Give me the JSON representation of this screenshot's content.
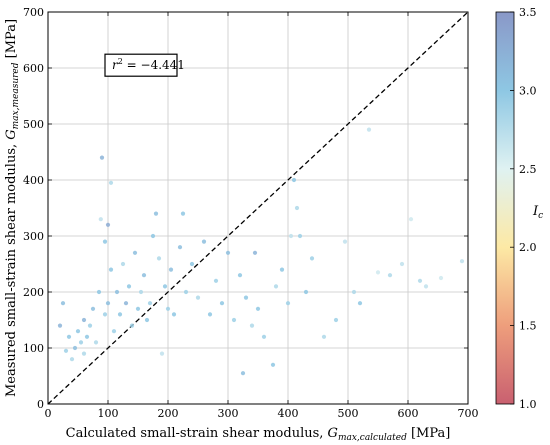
{
  "chart_data": {
    "type": "scatter",
    "xlabel": "Calculated small-strain shear modulus, G_max,calculated [MPa]",
    "xlabel_main": "Calculated small-strain shear modulus, ",
    "xlabel_sym": "G",
    "xlabel_sub": "max,calculated",
    "xlabel_unit": " [MPa]",
    "ylabel": "Measured small-strain shear modulus, G_max,measured [MPa]",
    "ylabel_main": "Measured small-strain shear modulus, ",
    "ylabel_sym": "G",
    "ylabel_sub": "max,measured",
    "ylabel_unit": " [MPa]",
    "xlim": [
      0,
      700
    ],
    "ylim": [
      0,
      700
    ],
    "x_ticks": [
      0,
      100,
      200,
      300,
      400,
      500,
      600,
      700
    ],
    "y_ticks": [
      0,
      100,
      200,
      300,
      400,
      500,
      600,
      700
    ],
    "grid": true,
    "reference_line": {
      "style": "dashed",
      "color": "#000000",
      "from": [
        0,
        0
      ],
      "to": [
        700,
        700
      ]
    },
    "annotation": {
      "text": "r² = −4.441",
      "sym": "r",
      "sup": "2",
      "rest": " = −4.441",
      "x": 95,
      "y": 605
    },
    "colorbar": {
      "label": "I_c",
      "label_sym": "I",
      "label_sub": "c",
      "min": 1.0,
      "max": 3.5,
      "ticks": [
        "1.0",
        "1.5",
        "2.0",
        "2.5",
        "3.0",
        "3.5"
      ],
      "colormap": [
        "#c96070",
        "#ee9e7c",
        "#fde9a5",
        "#dff2f2",
        "#8ec7e3",
        "#8a98c8"
      ]
    },
    "points": [
      {
        "x": 20,
        "y": 140,
        "ic": 3.2
      },
      {
        "x": 25,
        "y": 180,
        "ic": 3.1
      },
      {
        "x": 30,
        "y": 95,
        "ic": 2.9
      },
      {
        "x": 35,
        "y": 120,
        "ic": 3.0
      },
      {
        "x": 40,
        "y": 80,
        "ic": 2.8
      },
      {
        "x": 45,
        "y": 100,
        "ic": 3.1
      },
      {
        "x": 50,
        "y": 130,
        "ic": 3.0
      },
      {
        "x": 55,
        "y": 110,
        "ic": 2.9
      },
      {
        "x": 60,
        "y": 90,
        "ic": 2.8
      },
      {
        "x": 60,
        "y": 150,
        "ic": 3.2
      },
      {
        "x": 65,
        "y": 120,
        "ic": 3.0
      },
      {
        "x": 70,
        "y": 140,
        "ic": 2.9
      },
      {
        "x": 75,
        "y": 170,
        "ic": 3.1
      },
      {
        "x": 80,
        "y": 110,
        "ic": 2.8
      },
      {
        "x": 85,
        "y": 200,
        "ic": 3.0
      },
      {
        "x": 88,
        "y": 330,
        "ic": 2.7
      },
      {
        "x": 90,
        "y": 440,
        "ic": 3.2
      },
      {
        "x": 95,
        "y": 290,
        "ic": 3.0
      },
      {
        "x": 95,
        "y": 160,
        "ic": 2.9
      },
      {
        "x": 100,
        "y": 180,
        "ic": 3.1
      },
      {
        "x": 100,
        "y": 320,
        "ic": 3.3
      },
      {
        "x": 105,
        "y": 395,
        "ic": 2.8
      },
      {
        "x": 105,
        "y": 240,
        "ic": 3.0
      },
      {
        "x": 110,
        "y": 130,
        "ic": 2.9
      },
      {
        "x": 115,
        "y": 200,
        "ic": 3.1
      },
      {
        "x": 120,
        "y": 160,
        "ic": 3.0
      },
      {
        "x": 125,
        "y": 250,
        "ic": 2.8
      },
      {
        "x": 130,
        "y": 180,
        "ic": 3.2
      },
      {
        "x": 135,
        "y": 210,
        "ic": 3.0
      },
      {
        "x": 140,
        "y": 140,
        "ic": 2.9
      },
      {
        "x": 145,
        "y": 270,
        "ic": 3.1
      },
      {
        "x": 150,
        "y": 170,
        "ic": 3.0
      },
      {
        "x": 155,
        "y": 200,
        "ic": 2.8
      },
      {
        "x": 160,
        "y": 230,
        "ic": 3.1
      },
      {
        "x": 165,
        "y": 150,
        "ic": 3.0
      },
      {
        "x": 170,
        "y": 180,
        "ic": 2.9
      },
      {
        "x": 175,
        "y": 300,
        "ic": 3.0
      },
      {
        "x": 180,
        "y": 340,
        "ic": 3.1
      },
      {
        "x": 185,
        "y": 260,
        "ic": 2.8
      },
      {
        "x": 190,
        "y": 90,
        "ic": 2.7
      },
      {
        "x": 195,
        "y": 210,
        "ic": 3.0
      },
      {
        "x": 200,
        "y": 170,
        "ic": 2.9
      },
      {
        "x": 205,
        "y": 240,
        "ic": 3.1
      },
      {
        "x": 210,
        "y": 160,
        "ic": 3.0
      },
      {
        "x": 220,
        "y": 280,
        "ic": 3.1
      },
      {
        "x": 225,
        "y": 340,
        "ic": 3.0
      },
      {
        "x": 230,
        "y": 200,
        "ic": 2.9
      },
      {
        "x": 240,
        "y": 250,
        "ic": 3.0
      },
      {
        "x": 250,
        "y": 190,
        "ic": 2.8
      },
      {
        "x": 260,
        "y": 290,
        "ic": 3.1
      },
      {
        "x": 270,
        "y": 160,
        "ic": 3.0
      },
      {
        "x": 280,
        "y": 220,
        "ic": 2.9
      },
      {
        "x": 290,
        "y": 180,
        "ic": 3.0
      },
      {
        "x": 300,
        "y": 270,
        "ic": 3.1
      },
      {
        "x": 310,
        "y": 150,
        "ic": 2.9
      },
      {
        "x": 320,
        "y": 230,
        "ic": 3.0
      },
      {
        "x": 325,
        "y": 55,
        "ic": 3.1
      },
      {
        "x": 330,
        "y": 190,
        "ic": 3.0
      },
      {
        "x": 340,
        "y": 140,
        "ic": 2.8
      },
      {
        "x": 345,
        "y": 270,
        "ic": 3.2
      },
      {
        "x": 350,
        "y": 170,
        "ic": 3.0
      },
      {
        "x": 360,
        "y": 120,
        "ic": 2.9
      },
      {
        "x": 375,
        "y": 70,
        "ic": 3.0
      },
      {
        "x": 380,
        "y": 210,
        "ic": 2.8
      },
      {
        "x": 390,
        "y": 240,
        "ic": 3.0
      },
      {
        "x": 400,
        "y": 180,
        "ic": 2.9
      },
      {
        "x": 405,
        "y": 300,
        "ic": 2.7
      },
      {
        "x": 410,
        "y": 400,
        "ic": 3.0
      },
      {
        "x": 415,
        "y": 350,
        "ic": 2.8
      },
      {
        "x": 420,
        "y": 300,
        "ic": 2.9
      },
      {
        "x": 430,
        "y": 200,
        "ic": 3.0
      },
      {
        "x": 440,
        "y": 260,
        "ic": 2.9
      },
      {
        "x": 460,
        "y": 120,
        "ic": 2.8
      },
      {
        "x": 480,
        "y": 150,
        "ic": 2.9
      },
      {
        "x": 495,
        "y": 290,
        "ic": 2.7
      },
      {
        "x": 510,
        "y": 200,
        "ic": 2.8
      },
      {
        "x": 520,
        "y": 180,
        "ic": 3.0
      },
      {
        "x": 535,
        "y": 490,
        "ic": 2.7
      },
      {
        "x": 550,
        "y": 235,
        "ic": 2.6
      },
      {
        "x": 570,
        "y": 230,
        "ic": 2.8
      },
      {
        "x": 590,
        "y": 250,
        "ic": 2.7
      },
      {
        "x": 605,
        "y": 330,
        "ic": 2.6
      },
      {
        "x": 620,
        "y": 220,
        "ic": 2.8
      },
      {
        "x": 630,
        "y": 210,
        "ic": 2.7
      },
      {
        "x": 655,
        "y": 225,
        "ic": 2.6
      },
      {
        "x": 690,
        "y": 255,
        "ic": 2.7
      }
    ]
  }
}
